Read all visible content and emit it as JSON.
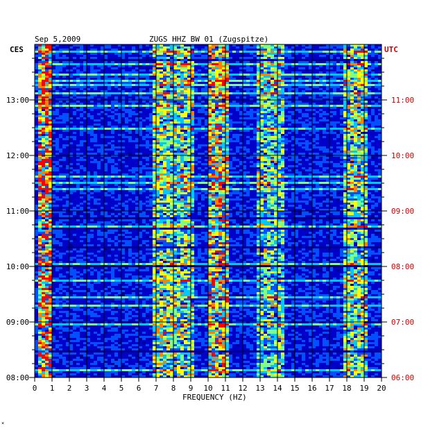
{
  "header": {
    "date": "Sep 5,2009",
    "title": "ZUGS HHZ BW 01 (Zugspitze)"
  },
  "chart_data": {
    "type": "heatmap",
    "title": "ZUGS HHZ BW 01 (Zugspitze)",
    "date": "Sep 5,2009",
    "xlabel": "FREQUENCY (HZ)",
    "left_axis_label": "CES",
    "right_axis_label": "UTC",
    "xlim": [
      0,
      20
    ],
    "x_ticks": [
      "0",
      "1",
      "2",
      "3",
      "4",
      "5",
      "6",
      "7",
      "8",
      "9",
      "10",
      "11",
      "12",
      "13",
      "14",
      "15",
      "16",
      "17",
      "18",
      "19",
      "20"
    ],
    "left_ticks": [
      "08:00",
      "09:00",
      "10:00",
      "11:00",
      "12:00",
      "13:00"
    ],
    "right_ticks": [
      "06:00",
      "07:00",
      "08:00",
      "09:00",
      "10:00",
      "11:00"
    ],
    "time_range_ces": [
      "08:00",
      "13:45"
    ],
    "grid": true,
    "colormap": [
      "#00008b",
      "#0000ff",
      "#0050ff",
      "#00c8ff",
      "#80ff80",
      "#ffff00",
      "#ff8000",
      "#ff0000"
    ],
    "colors": {
      "background": "#0000c8",
      "grid": "#000000",
      "utc_labels": "#cc0000"
    }
  }
}
